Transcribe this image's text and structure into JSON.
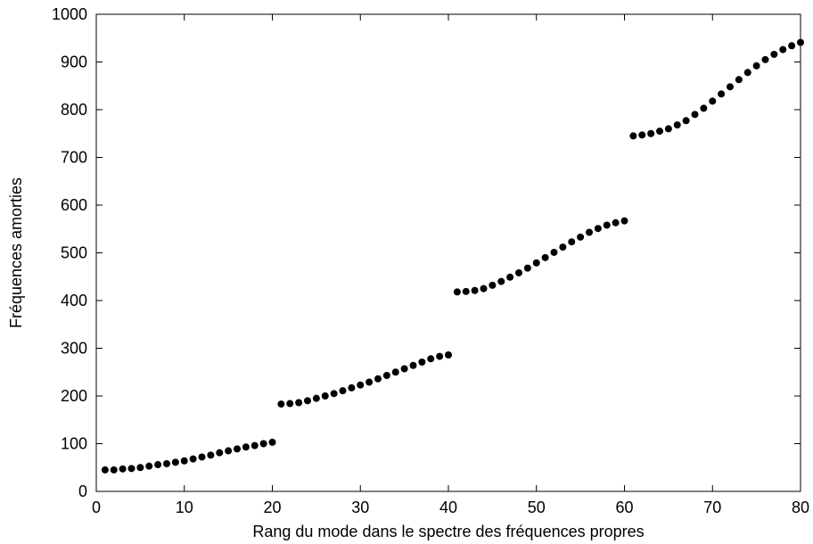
{
  "chart_data": {
    "type": "scatter",
    "title": "",
    "xlabel": "Rang du mode dans le spectre des fréquences propres",
    "ylabel": "Fréquences amorties",
    "xlim": [
      0,
      80
    ],
    "ylim": [
      0,
      1000
    ],
    "xticks": [
      0,
      10,
      20,
      30,
      40,
      50,
      60,
      70,
      80
    ],
    "yticks": [
      0,
      100,
      200,
      300,
      400,
      500,
      600,
      700,
      800,
      900,
      1000
    ],
    "grid": false,
    "legend": "none",
    "marker_color": "#000000",
    "series": [
      {
        "x": [
          1,
          2,
          3,
          4,
          5,
          6,
          7,
          8,
          9,
          10,
          11,
          12,
          13,
          14,
          15,
          16,
          17,
          18,
          19,
          20,
          21,
          22,
          23,
          24,
          25,
          26,
          27,
          28,
          29,
          30,
          31,
          32,
          33,
          34,
          35,
          36,
          37,
          38,
          39,
          40,
          41,
          42,
          43,
          44,
          45,
          46,
          47,
          48,
          49,
          50,
          51,
          52,
          53,
          54,
          55,
          56,
          57,
          58,
          59,
          60,
          61,
          62,
          63,
          64,
          65,
          66,
          67,
          68,
          69,
          70,
          71,
          72,
          73,
          74,
          75,
          76,
          77,
          78,
          79,
          80
        ],
        "y": [
          45,
          45,
          47,
          48,
          50,
          53,
          56,
          58,
          61,
          64,
          68,
          72,
          76,
          81,
          85,
          89,
          93,
          96,
          100,
          103,
          183,
          184,
          186,
          190,
          195,
          200,
          205,
          211,
          217,
          223,
          229,
          236,
          243,
          250,
          257,
          264,
          271,
          278,
          283,
          286,
          418,
          419,
          421,
          425,
          432,
          440,
          449,
          458,
          468,
          479,
          490,
          501,
          512,
          523,
          533,
          543,
          551,
          558,
          563,
          567,
          745,
          747,
          750,
          755,
          760,
          768,
          777,
          790,
          803,
          818,
          833,
          848,
          863,
          878,
          892,
          905,
          916,
          926,
          934,
          941
        ]
      }
    ]
  }
}
